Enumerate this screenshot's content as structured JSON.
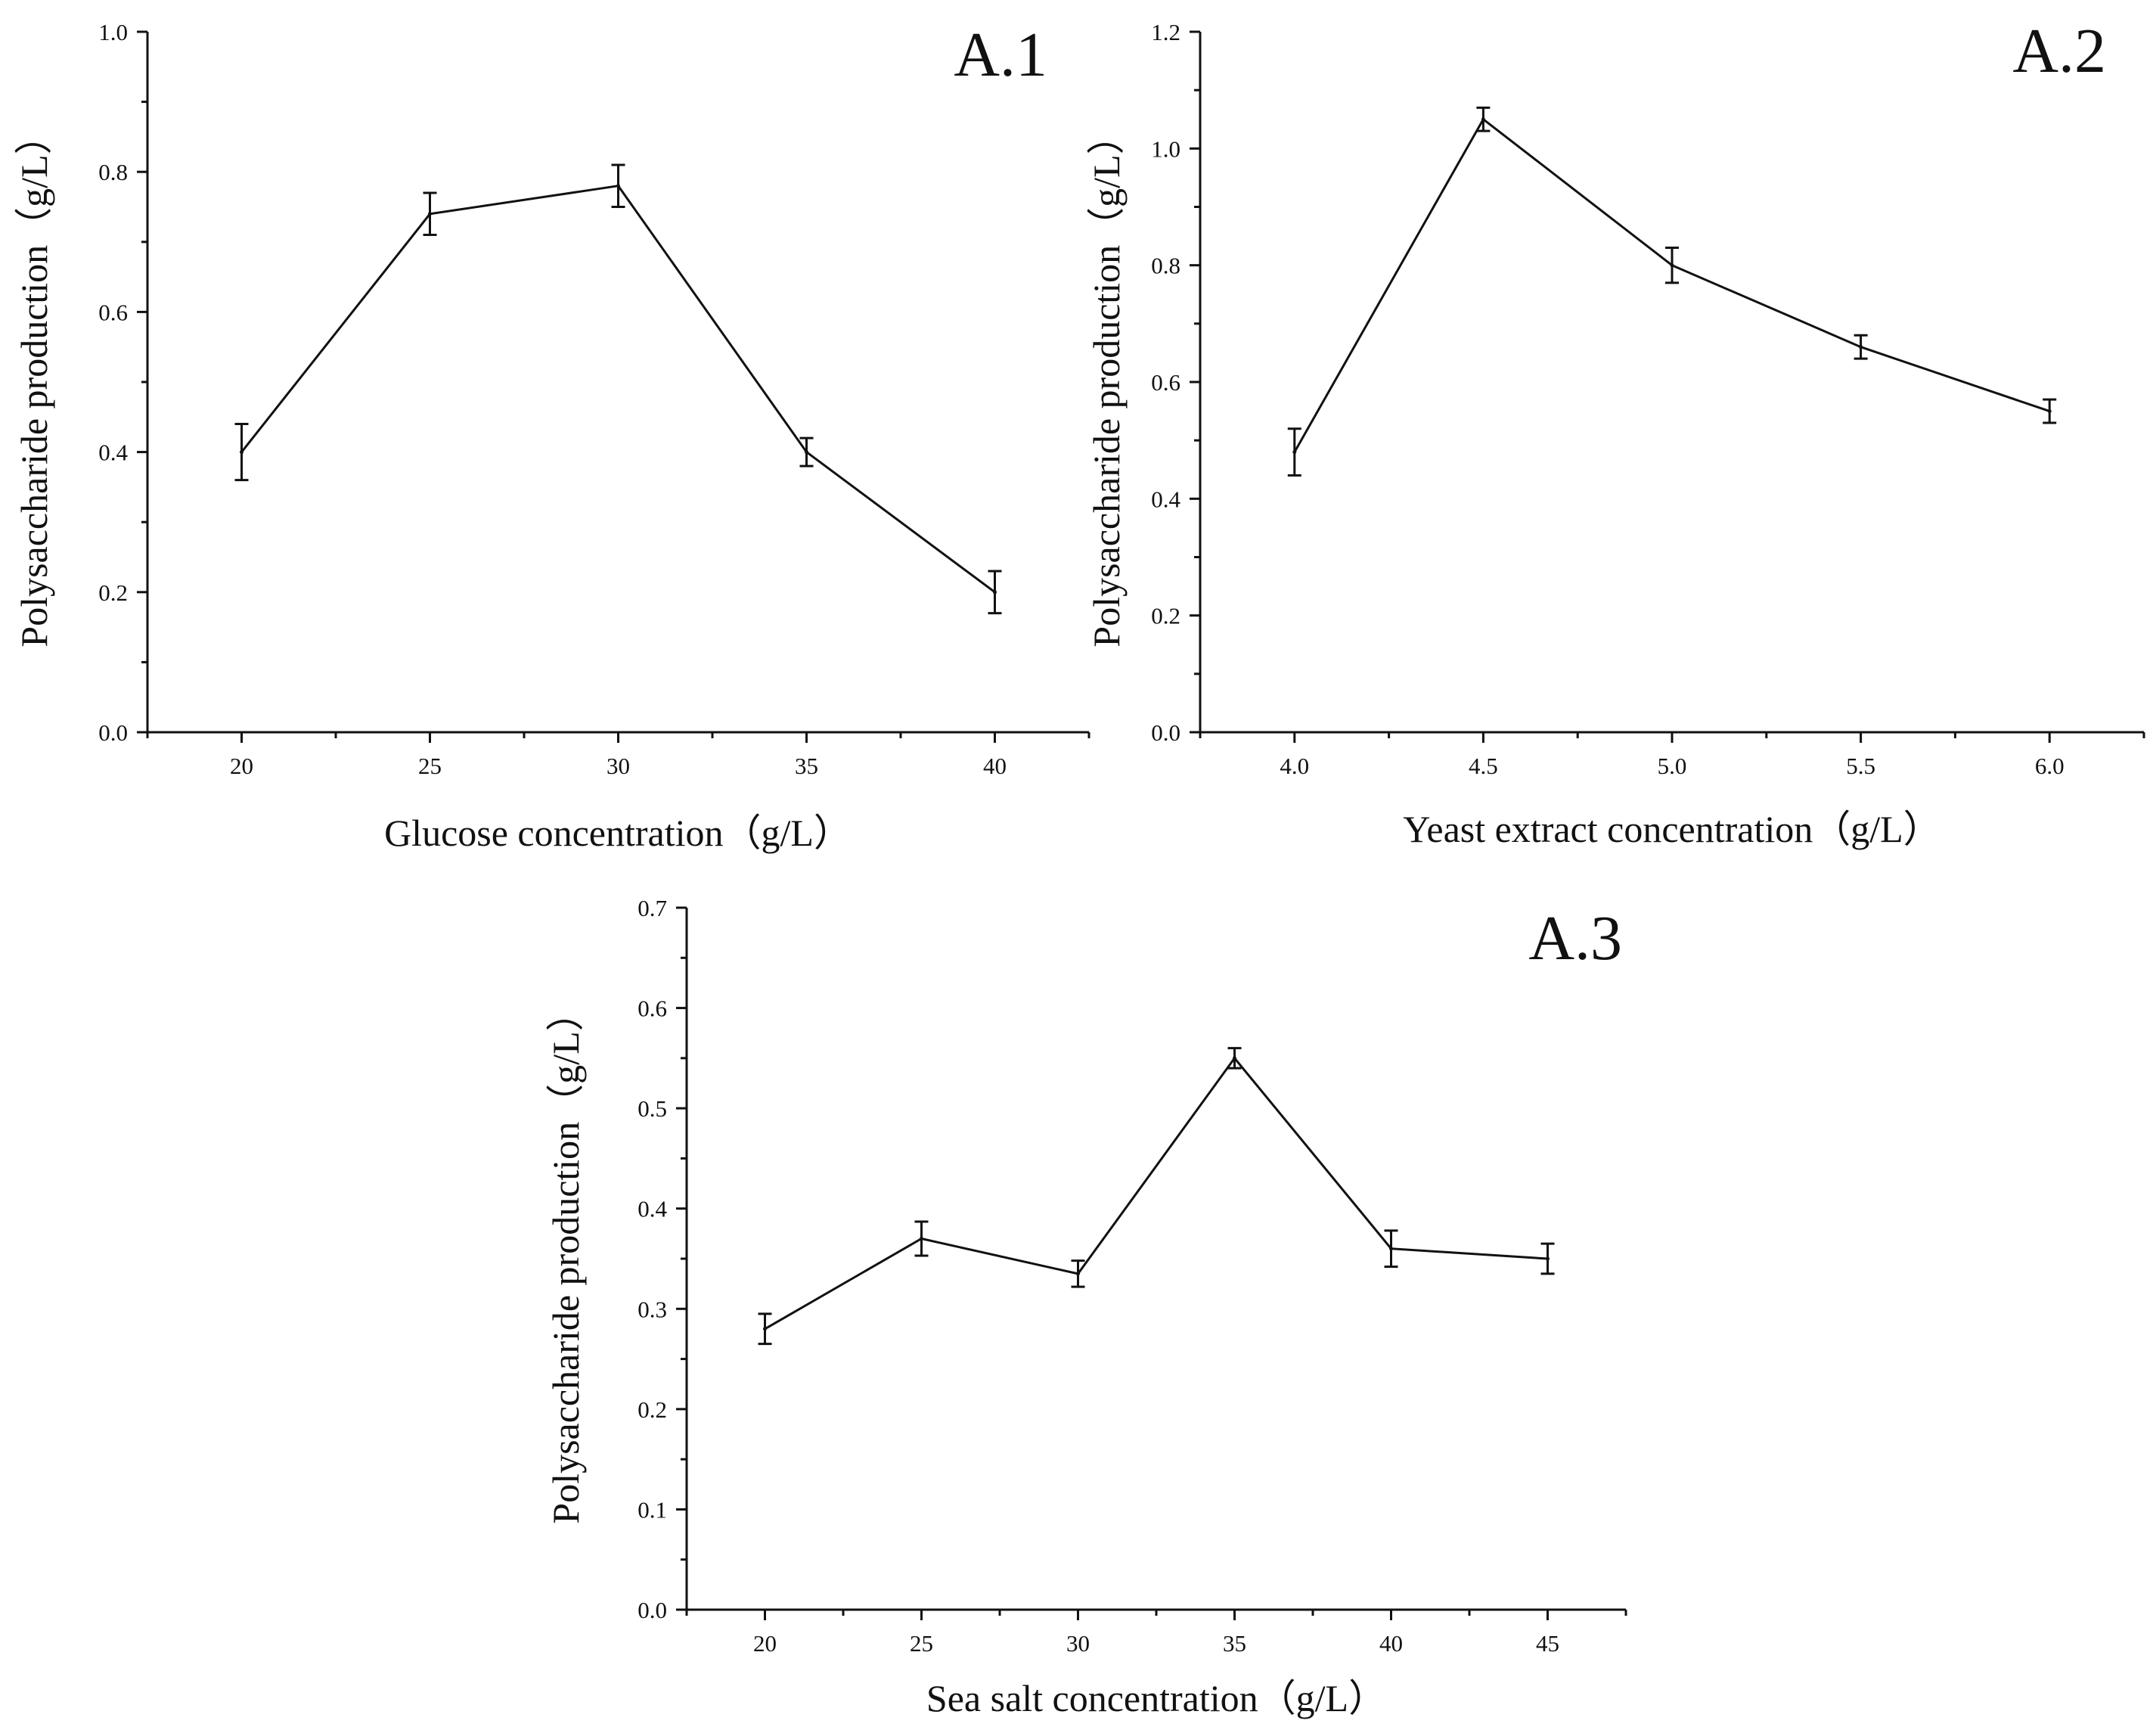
{
  "chart_data": [
    {
      "type": "line",
      "panel_label": "A.1",
      "xlabel": "Glucose concentration（g/L）",
      "ylabel": "Polysaccharide production（g/L）",
      "x": [
        20,
        25,
        30,
        35,
        40
      ],
      "values": [
        0.4,
        0.74,
        0.78,
        0.4,
        0.2
      ],
      "errors": [
        0.04,
        0.03,
        0.03,
        0.02,
        0.03
      ],
      "x_ticks": [
        "20",
        "25",
        "30",
        "35",
        "40"
      ],
      "y_ticks": [
        "0.0",
        "0.2",
        "0.4",
        "0.6",
        "0.8",
        "1.0"
      ],
      "xlim": [
        17.5,
        42.5
      ],
      "ylim": [
        0.0,
        1.0
      ],
      "grid": false,
      "legend": "none"
    },
    {
      "type": "line",
      "panel_label": "A.2",
      "xlabel": "Yeast extract concentration（g/L）",
      "ylabel": "Polysaccharide production（g/L）",
      "x": [
        4.0,
        4.5,
        5.0,
        5.5,
        6.0
      ],
      "values": [
        0.48,
        1.05,
        0.8,
        0.66,
        0.55
      ],
      "errors": [
        0.04,
        0.02,
        0.03,
        0.02,
        0.02
      ],
      "x_ticks": [
        "4.0",
        "4.5",
        "5.0",
        "5.5",
        "6.0"
      ],
      "y_ticks": [
        "0.0",
        "0.2",
        "0.4",
        "0.6",
        "0.8",
        "1.0",
        "1.2"
      ],
      "xlim": [
        3.75,
        6.25
      ],
      "ylim": [
        0.0,
        1.2
      ],
      "grid": false,
      "legend": "none"
    },
    {
      "type": "line",
      "panel_label": "A.3",
      "xlabel": "Sea salt concentration（g/L）",
      "ylabel": "Polysaccharide production（g/L）",
      "x": [
        20,
        25,
        30,
        35,
        40,
        45
      ],
      "values": [
        0.28,
        0.37,
        0.335,
        0.55,
        0.36,
        0.35
      ],
      "errors": [
        0.015,
        0.017,
        0.013,
        0.01,
        0.018,
        0.015
      ],
      "x_ticks": [
        "20",
        "25",
        "30",
        "35",
        "40",
        "45"
      ],
      "y_ticks": [
        "0.0",
        "0.1",
        "0.2",
        "0.3",
        "0.4",
        "0.5",
        "0.6",
        "0.7"
      ],
      "xlim": [
        17.5,
        47.5
      ],
      "ylim": [
        0.0,
        0.7
      ],
      "grid": false,
      "legend": "none"
    }
  ]
}
